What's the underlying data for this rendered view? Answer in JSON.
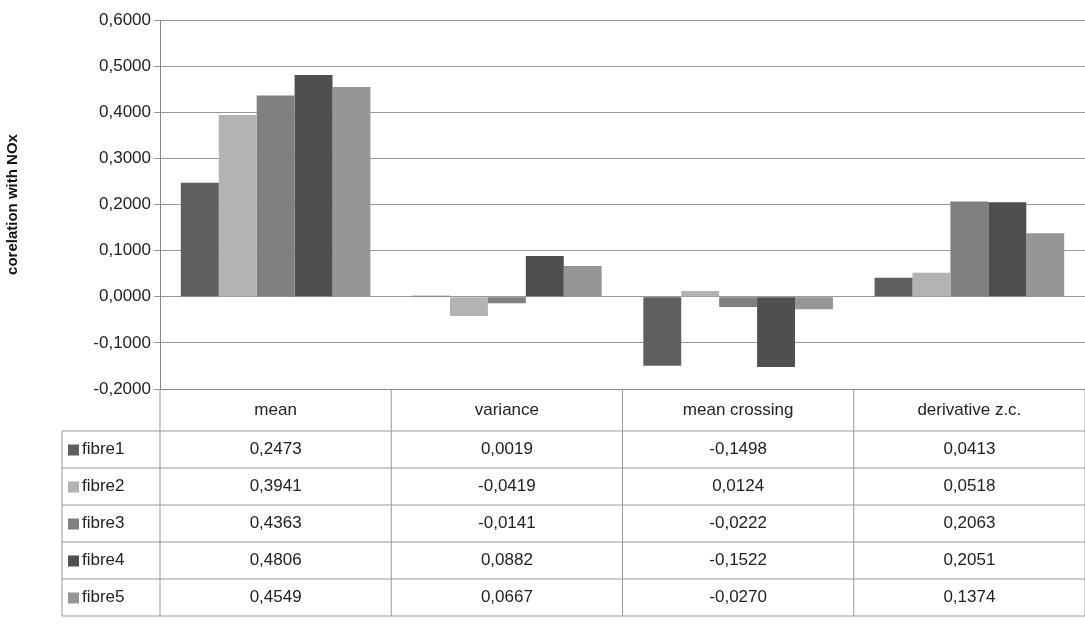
{
  "chart_data": {
    "type": "bar",
    "ylabel": "corelation with NOx",
    "categories": [
      "mean",
      "variance",
      "mean crossing",
      "derivative z.c."
    ],
    "series": [
      {
        "name": "fibre1",
        "color": "#5f5f5f",
        "values": [
          0.2473,
          0.0019,
          -0.1498,
          0.0413
        ],
        "value_labels": [
          "0,2473",
          "0,0019",
          "-0,1498",
          "0,0413"
        ]
      },
      {
        "name": "fibre2",
        "color": "#b3b3b3",
        "values": [
          0.3941,
          -0.0419,
          0.0124,
          0.0518
        ],
        "value_labels": [
          "0,3941",
          "-0,0419",
          "0,0124",
          "0,0518"
        ]
      },
      {
        "name": "fibre3",
        "color": "#808080",
        "values": [
          0.4363,
          -0.0141,
          -0.0222,
          0.2063
        ],
        "value_labels": [
          "0,4363",
          "-0,0141",
          "-0,0222",
          "0,2063"
        ]
      },
      {
        "name": "fibre4",
        "color": "#4f4f4f",
        "values": [
          0.4806,
          0.0882,
          -0.1522,
          0.2051
        ],
        "value_labels": [
          "0,4806",
          "0,0882",
          "-0,1522",
          "0,2051"
        ]
      },
      {
        "name": "fibre5",
        "color": "#969696",
        "values": [
          0.4549,
          0.0667,
          -0.027,
          0.1374
        ],
        "value_labels": [
          "0,4549",
          "0,0667",
          "-0,0270",
          "0,1374"
        ]
      }
    ],
    "ylim": [
      -0.2,
      0.6
    ],
    "yticks": [
      {
        "value": -0.2,
        "label": "-0,2000"
      },
      {
        "value": -0.1,
        "label": "-0,1000"
      },
      {
        "value": 0,
        "label": "0,0000"
      },
      {
        "value": 0.1,
        "label": "0,1000"
      },
      {
        "value": 0.2,
        "label": "0,2000"
      },
      {
        "value": 0.3,
        "label": "0,3000"
      },
      {
        "value": 0.4,
        "label": "0,4000"
      },
      {
        "value": 0.5,
        "label": "0,5000"
      },
      {
        "value": 0.6,
        "label": "0,6000"
      }
    ],
    "grid": "y",
    "legend": "bottom"
  }
}
